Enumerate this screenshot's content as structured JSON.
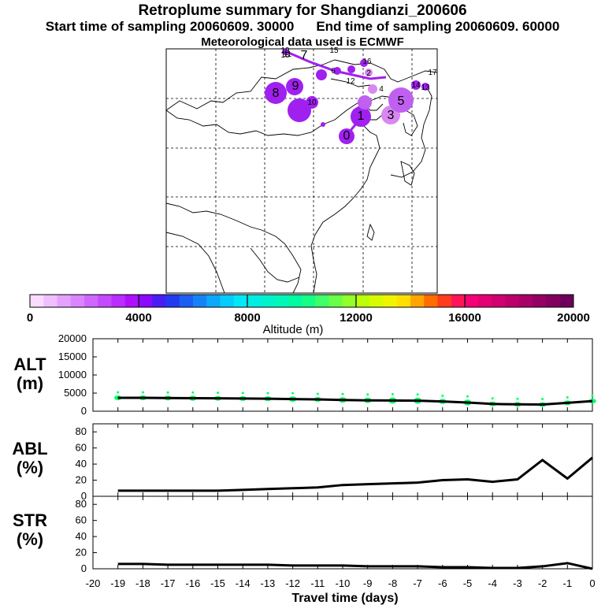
{
  "header": {
    "title": "Retroplume summary for Shangdianzi_200606",
    "start_text": "Start time of sampling 20060609. 30000",
    "end_text": "End time of sampling 20060609. 60000",
    "met_text": "Meteorological data used is ECMWF"
  },
  "map": {
    "region": "East Asia",
    "plume_labels": [
      "0",
      "1",
      "2",
      "3",
      "4",
      "5",
      "6",
      "7",
      "8",
      "9",
      "10",
      "11",
      "12",
      "13",
      "14",
      "15",
      "16",
      "17",
      "18",
      "19"
    ],
    "plume_color": "#a020f0"
  },
  "colorbar": {
    "min": 0,
    "max": 20000,
    "bins": 40,
    "tick_labels": [
      "0",
      "4000",
      "8000",
      "12000",
      "16000",
      "20000"
    ],
    "label": "Altitude (m)"
  },
  "chart_data": [
    {
      "type": "line",
      "title": "ALT",
      "ylabel": "ALT (m)",
      "ylabel_name": "ALT",
      "ylabel_unit": "(m)",
      "xlim": [
        -20,
        0
      ],
      "ylim": [
        0,
        20000
      ],
      "yticks": [
        "0",
        "5000",
        "10000",
        "15000",
        "20000"
      ],
      "x": [
        -19,
        -18,
        -17,
        -16,
        -15,
        -14,
        -13,
        -12,
        -11,
        -10,
        -9,
        -8,
        -7,
        -6,
        -5,
        -4,
        -3,
        -2,
        -1,
        0
      ],
      "y": [
        3700,
        3700,
        3650,
        3600,
        3550,
        3500,
        3450,
        3350,
        3250,
        3100,
        3000,
        2950,
        2900,
        2700,
        2400,
        2000,
        1900,
        1850,
        2300,
        2800
      ],
      "spread": [
        1300,
        1300,
        1300,
        1400,
        1300,
        1200,
        1300,
        1500,
        1300,
        1500,
        1500,
        1700,
        1700,
        1400,
        1600,
        1200,
        1300,
        1000,
        800,
        400
      ],
      "marker_color": "#00ff66"
    },
    {
      "type": "line",
      "title": "ABL",
      "ylabel": "ABL (%)",
      "ylabel_name": "ABL",
      "ylabel_unit": "(%)",
      "xlim": [
        -20,
        0
      ],
      "ylim": [
        0,
        90
      ],
      "yticks": [
        "0",
        "20",
        "40",
        "60",
        "80"
      ],
      "x": [
        -19,
        -18,
        -17,
        -16,
        -15,
        -14,
        -13,
        -12,
        -11,
        -10,
        -9,
        -8,
        -7,
        -6,
        -5,
        -4,
        -3,
        -2,
        -1,
        0
      ],
      "y": [
        7,
        7,
        7,
        7,
        7,
        8,
        9,
        10,
        11,
        14,
        15,
        16,
        17,
        20,
        21,
        18,
        21,
        45,
        22,
        48
      ]
    },
    {
      "type": "line",
      "title": "STR",
      "ylabel": "STR (%)",
      "ylabel_name": "STR",
      "ylabel_unit": "(%)",
      "xlim": [
        -20,
        0
      ],
      "ylim": [
        0,
        90
      ],
      "yticks": [
        "0",
        "20",
        "40",
        "60",
        "80"
      ],
      "x": [
        -19,
        -18,
        -17,
        -16,
        -15,
        -14,
        -13,
        -12,
        -11,
        -10,
        -9,
        -8,
        -7,
        -6,
        -5,
        -4,
        -3,
        -2,
        -1,
        0
      ],
      "y": [
        6,
        6,
        5,
        5,
        5,
        5,
        5,
        4,
        4,
        4,
        3,
        3,
        3,
        2,
        2,
        1,
        1,
        3,
        7,
        0
      ]
    }
  ],
  "x_axis": {
    "label": "Travel time (days)",
    "tick_labels": [
      "-20",
      "-19",
      "-18",
      "-17",
      "-16",
      "-15",
      "-14",
      "-13",
      "-12",
      "-11",
      "-10",
      "-9",
      "-8",
      "-7",
      "-6",
      "-5",
      "-4",
      "-3",
      "-2",
      "-1",
      "0"
    ]
  }
}
